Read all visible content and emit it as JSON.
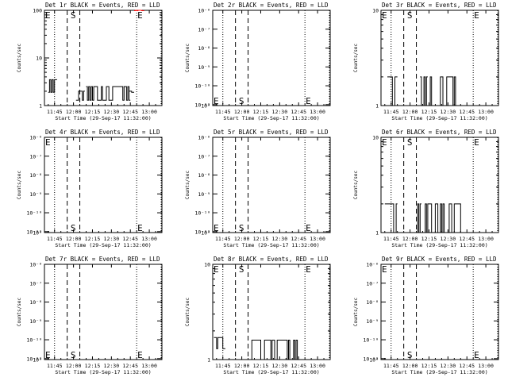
{
  "figure": {
    "x_tick_labels": [
      "11:45",
      "12:00",
      "12:15",
      "12:30",
      "12:45",
      "13:00"
    ],
    "xlabel": "Start Time (29-Sep-17 11:32:00)",
    "ylabel": "Counts/sec",
    "markers": {
      "start": "E",
      "mid": "S",
      "end": "E"
    }
  },
  "colors": {
    "events": "#000000",
    "lld": "#ff0000",
    "background": "#ffffff"
  },
  "chart_data": [
    {
      "type": "line",
      "title": "Det 1r BLACK = Events, RED = LLD",
      "xlabel": "Start Time (29-Sep-17 11:32:00)",
      "ylabel": "Counts/sec",
      "x_range": [
        "11:37",
        "13:10"
      ],
      "ylim": [
        1,
        100
      ],
      "yscale": "log",
      "y_tick_labels": [
        "1",
        "10",
        "100"
      ],
      "vlines_dotted": [
        "11:45",
        "12:50",
        "13:10"
      ],
      "vlines_dashed": [
        "11:55",
        "12:05"
      ],
      "markers": [
        {
          "label": "E",
          "t": "11:37",
          "pos": "top"
        },
        {
          "label": "S",
          "t": "11:57",
          "pos": "top"
        },
        {
          "label": "E",
          "t": "12:50",
          "pos": "top"
        }
      ],
      "series": [
        {
          "name": "Events",
          "color": "#000000",
          "segments": [
            {
              "from": "11:40",
              "to": "11:46",
              "low": 1.9,
              "high": 3.5
            },
            {
              "from": "12:02",
              "to": "12:08",
              "low": 1.3,
              "high": 2.0
            },
            {
              "from": "12:10",
              "to": "12:44",
              "low": 1.3,
              "high": 2.5
            },
            {
              "from": "12:44",
              "to": "12:47",
              "low": 1.9,
              "high": 2.0
            }
          ]
        },
        {
          "name": "LLD",
          "color": "#ff0000",
          "segments": [
            {
              "from": "12:48",
              "to": "12:55",
              "low": 98,
              "high": 100
            }
          ]
        }
      ]
    },
    {
      "type": "line",
      "title": "Det 2r BLACK = Events, RED = LLD",
      "xlabel": "Start Time (29-Sep-17 11:32:00)",
      "ylabel": "Counts/sec",
      "x_range": [
        "11:37",
        "13:10"
      ],
      "ylim": [
        1,
        1e-06
      ],
      "yscale": "log",
      "y_tick_labels": [
        "10⁻⁶",
        "10⁻⁷",
        "10⁻⁸",
        "10⁻⁹",
        "10⁻¹⁰",
        "10⁻¹¹",
        "10⁰"
      ],
      "vlines_dotted": [
        "11:45",
        "12:50",
        "13:10"
      ],
      "vlines_dashed": [
        "11:55",
        "12:05"
      ],
      "markers": [
        {
          "label": "E",
          "t": "11:37",
          "pos": "bottom"
        },
        {
          "label": "S",
          "t": "11:57",
          "pos": "bottom"
        },
        {
          "label": "E",
          "t": "12:50",
          "pos": "bottom"
        }
      ],
      "series": []
    },
    {
      "type": "line",
      "title": "Det 3r BLACK = Events, RED = LLD",
      "xlabel": "Start Time (29-Sep-17 11:32:00)",
      "ylabel": "Counts/sec",
      "x_range": [
        "11:37",
        "13:10"
      ],
      "ylim": [
        1,
        10
      ],
      "yscale": "log",
      "y_tick_labels": [
        "1",
        "10"
      ],
      "vlines_dotted": [
        "11:45",
        "12:50",
        "13:10"
      ],
      "vlines_dashed": [
        "11:55",
        "12:05"
      ],
      "markers": [
        {
          "label": "E",
          "t": "11:37",
          "pos": "top"
        },
        {
          "label": "S",
          "t": "11:57",
          "pos": "top"
        },
        {
          "label": "E",
          "t": "12:50",
          "pos": "top"
        }
      ],
      "series": [
        {
          "name": "Events",
          "color": "#000000",
          "segments": [
            {
              "from": "11:42",
              "to": "11:49",
              "low": 1,
              "high": 2
            },
            {
              "from": "12:08",
              "to": "12:13",
              "low": 1,
              "high": 2
            },
            {
              "from": "12:15",
              "to": "12:37",
              "low": 1,
              "high": 2
            }
          ]
        }
      ]
    },
    {
      "type": "line",
      "title": "Det 4r BLACK = Events, RED = LLD",
      "xlabel": "Start Time (29-Sep-17 11:32:00)",
      "ylabel": "Counts/sec",
      "x_range": [
        "11:37",
        "13:10"
      ],
      "ylim": [
        1,
        1e-06
      ],
      "yscale": "log",
      "y_tick_labels": [
        "10⁻⁶",
        "10⁻⁷",
        "10⁻⁸",
        "10⁻⁹",
        "10⁻¹⁰",
        "10⁻¹¹",
        "10⁰"
      ],
      "vlines_dotted": [
        "11:45",
        "12:50",
        "13:10"
      ],
      "vlines_dashed": [
        "11:55",
        "12:05"
      ],
      "markers": [
        {
          "label": "E",
          "t": "11:37",
          "pos": "top"
        },
        {
          "label": "S",
          "t": "11:57",
          "pos": "bottom"
        },
        {
          "label": "E",
          "t": "12:50",
          "pos": "bottom"
        }
      ],
      "series": []
    },
    {
      "type": "line",
      "title": "Det 5r BLACK = Events, RED = LLD",
      "xlabel": "Start Time (29-Sep-17 11:32:00)",
      "ylabel": "Counts/sec",
      "x_range": [
        "11:37",
        "13:10"
      ],
      "ylim": [
        1,
        1e-06
      ],
      "yscale": "log",
      "y_tick_labels": [
        "10⁻⁶",
        "10⁻⁷",
        "10⁻⁸",
        "10⁻⁹",
        "10⁻¹⁰",
        "10⁻¹¹",
        "10⁰"
      ],
      "vlines_dotted": [
        "11:45",
        "12:50",
        "13:10"
      ],
      "vlines_dashed": [
        "11:55",
        "12:05"
      ],
      "markers": [
        {
          "label": "E",
          "t": "11:37",
          "pos": "bottom"
        },
        {
          "label": "S",
          "t": "11:57",
          "pos": "bottom"
        },
        {
          "label": "E",
          "t": "12:50",
          "pos": "bottom"
        }
      ],
      "series": []
    },
    {
      "type": "line",
      "title": "Det 6r BLACK = Events, RED = LLD",
      "xlabel": "Start Time (29-Sep-17 11:32:00)",
      "ylabel": "Counts/sec",
      "x_range": [
        "11:37",
        "13:10"
      ],
      "ylim": [
        1,
        10
      ],
      "yscale": "log",
      "y_tick_labels": [
        "1",
        "10"
      ],
      "vlines_dotted": [
        "11:45",
        "12:50",
        "13:10"
      ],
      "vlines_dashed": [
        "11:55",
        "12:05"
      ],
      "markers": [
        {
          "label": "E",
          "t": "11:37",
          "pos": "top"
        },
        {
          "label": "S",
          "t": "11:57",
          "pos": "top"
        },
        {
          "label": "E",
          "t": "12:50",
          "pos": "top"
        }
      ],
      "series": [
        {
          "name": "Events",
          "color": "#000000",
          "segments": [
            {
              "from": "11:40",
              "to": "11:49",
              "low": 1,
              "high": 2
            },
            {
              "from": "12:04",
              "to": "12:08",
              "low": 1,
              "high": 2
            },
            {
              "from": "12:10",
              "to": "12:40",
              "low": 1,
              "high": 2
            }
          ]
        }
      ]
    },
    {
      "type": "line",
      "title": "Det 7r BLACK = Events, RED = LLD",
      "xlabel": "Start Time (29-Sep-17 11:32:00)",
      "ylabel": "Counts/sec",
      "x_range": [
        "11:37",
        "13:10"
      ],
      "ylim": [
        1,
        1e-06
      ],
      "yscale": "log",
      "y_tick_labels": [
        "10⁻⁶",
        "10⁻⁷",
        "10⁻⁸",
        "10⁻⁹",
        "10⁻¹⁰",
        "10⁻¹¹",
        "10⁰"
      ],
      "vlines_dotted": [
        "11:45",
        "12:50",
        "13:10"
      ],
      "vlines_dashed": [
        "11:55",
        "12:05"
      ],
      "markers": [
        {
          "label": "E",
          "t": "11:37",
          "pos": "bottom"
        },
        {
          "label": "S",
          "t": "11:57",
          "pos": "bottom"
        },
        {
          "label": "E",
          "t": "12:50",
          "pos": "bottom"
        }
      ],
      "series": []
    },
    {
      "type": "line",
      "title": "Det 8r BLACK = Events, RED = LLD",
      "xlabel": "Start Time (29-Sep-17 11:32:00)",
      "ylabel": "Counts/sec",
      "x_range": [
        "11:37",
        "13:10"
      ],
      "ylim": [
        1,
        10
      ],
      "yscale": "log",
      "y_tick_labels": [
        "1",
        "10"
      ],
      "vlines_dotted": [
        "11:45",
        "12:50",
        "13:10"
      ],
      "vlines_dashed": [
        "11:55",
        "12:05"
      ],
      "markers": [
        {
          "label": "E",
          "t": "11:37",
          "pos": "top"
        },
        {
          "label": "S",
          "t": "11:57",
          "pos": "top"
        },
        {
          "label": "E",
          "t": "12:50",
          "pos": "top"
        }
      ],
      "series": [
        {
          "name": "Events",
          "color": "#000000",
          "segments": [
            {
              "from": "11:38",
              "to": "11:46",
              "low": 1.3,
              "high": 1.7
            },
            {
              "from": "12:05",
              "to": "12:44",
              "low": 1.0,
              "high": 1.6
            }
          ]
        }
      ]
    },
    {
      "type": "line",
      "title": "Det 9r BLACK = Events, RED = LLD",
      "xlabel": "Start Time (29-Sep-17 11:32:00)",
      "ylabel": "Counts/sec",
      "x_range": [
        "11:37",
        "13:10"
      ],
      "ylim": [
        1,
        1e-06
      ],
      "yscale": "log",
      "y_tick_labels": [
        "10⁻⁶",
        "10⁻⁷",
        "10⁻⁸",
        "10⁻⁹",
        "10⁻¹⁰",
        "10⁻¹¹",
        "10⁰"
      ],
      "vlines_dotted": [
        "11:45",
        "12:50",
        "13:10"
      ],
      "vlines_dashed": [
        "11:55",
        "12:05"
      ],
      "markers": [
        {
          "label": "E",
          "t": "11:37",
          "pos": "top"
        },
        {
          "label": "S",
          "t": "11:57",
          "pos": "bottom"
        },
        {
          "label": "E",
          "t": "12:50",
          "pos": "bottom"
        }
      ],
      "series": []
    }
  ]
}
